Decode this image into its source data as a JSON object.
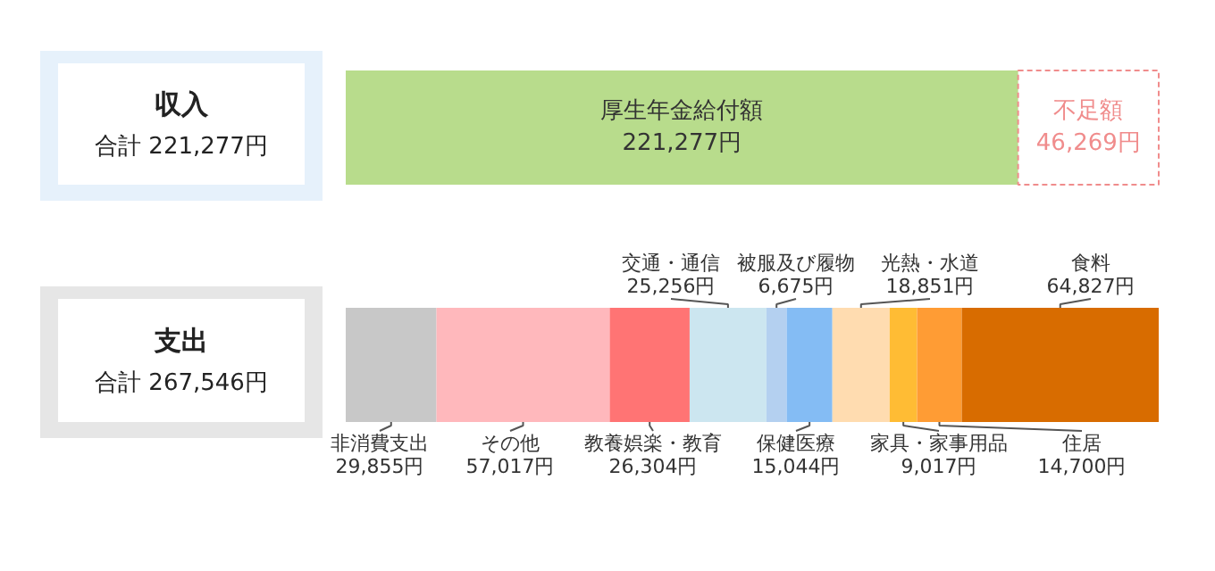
{
  "chart_data": {
    "type": "bar",
    "orientation": "horizontal",
    "stacked": true,
    "categories": [
      "収入",
      "支出"
    ],
    "annotations": [
      "合計 221,277円",
      "合計 267,546円"
    ],
    "series": [
      {
        "name": "厚生年金給付額",
        "color": "#b8dc8c",
        "values": [
          221277,
          null
        ],
        "value_labels": [
          "221,277円",
          null
        ]
      },
      {
        "name": "不足額",
        "color": "#f08c8c",
        "line_style": "dashed",
        "values": [
          46269,
          null
        ],
        "value_labels": [
          "46,269円",
          null
        ]
      },
      {
        "name": "非消費支出",
        "color": "#c8c8c8",
        "values": [
          null,
          29855
        ],
        "value_labels": [
          null,
          "29,855円"
        ]
      },
      {
        "name": "その他",
        "color": "#ffb8bc",
        "values": [
          null,
          57017
        ],
        "value_labels": [
          null,
          "57,017円"
        ]
      },
      {
        "name": "教養娯楽・教育",
        "color": "#ff7474",
        "values": [
          null,
          26304
        ],
        "value_labels": [
          null,
          "26,304円"
        ]
      },
      {
        "name": "交通・通信",
        "color": "#cce6f0",
        "values": [
          null,
          25256
        ],
        "value_labels": [
          null,
          "25,256円"
        ]
      },
      {
        "name": "被服及び履物",
        "color": "#b4d0f0",
        "values": [
          null,
          6675
        ],
        "value_labels": [
          null,
          "6,675円"
        ]
      },
      {
        "name": "保健医療",
        "color": "#84bcf4",
        "values": [
          null,
          15044
        ],
        "value_labels": [
          null,
          "15,044円"
        ]
      },
      {
        "name": "光熱・水道",
        "color": "#ffdcb0",
        "values": [
          null,
          18851
        ],
        "value_labels": [
          null,
          "18,851円"
        ]
      },
      {
        "name": "家具・家事用品",
        "color": "#ffbc34",
        "values": [
          null,
          9017
        ],
        "value_labels": [
          null,
          "9,017円"
        ]
      },
      {
        "name": "住居",
        "color": "#ff9c34",
        "values": [
          null,
          14700
        ],
        "value_labels": [
          null,
          "14,700円"
        ]
      },
      {
        "name": "食料",
        "color": "#d86c00",
        "values": [
          null,
          64827
        ],
        "value_labels": [
          null,
          "64,827円"
        ]
      }
    ]
  }
}
